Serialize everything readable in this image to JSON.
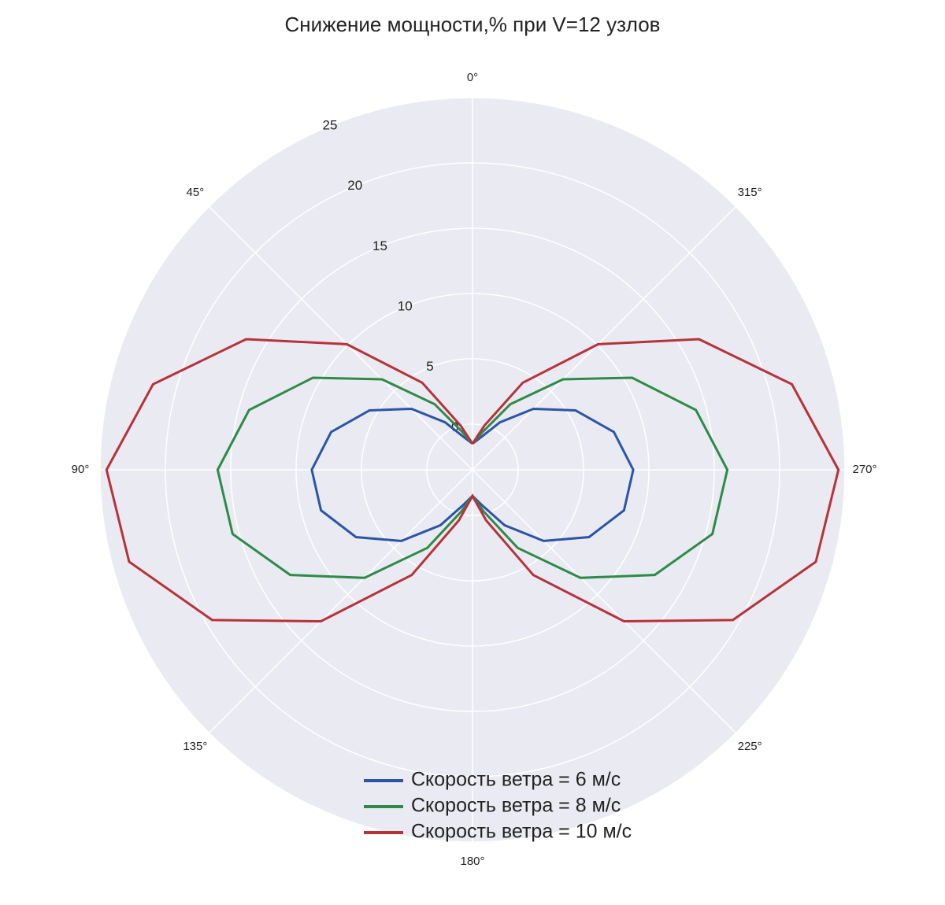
{
  "chart_data": {
    "type": "polar",
    "title": "Снижение мощности,% при V=12 узлов",
    "theta": [
      0,
      15,
      30,
      45,
      60,
      75,
      90,
      105,
      120,
      135,
      150,
      165,
      180,
      195,
      210,
      225,
      240,
      255,
      270,
      285,
      300,
      315,
      330,
      345,
      360
    ],
    "series": [
      {
        "name": "Скорость ветра = 6 м/с",
        "color": "#2b55a8",
        "values": [
          -1.5,
          -0.9,
          0.7,
          3.1,
          5.6,
          7.7,
          8.8,
          8.5,
          6.8,
          4.2,
          1.4,
          -0.7,
          -1.5,
          -0.7,
          1.4,
          4.2,
          6.8,
          8.5,
          8.8,
          7.7,
          5.6,
          3.1,
          0.7,
          -0.9,
          -1.5
        ]
      },
      {
        "name": "Скорость ветра = 8 м/с",
        "color": "#2e8b47",
        "values": [
          -1.5,
          -0.5,
          2.3,
          6.3,
          10.6,
          14.2,
          16.0,
          15.5,
          12.6,
          8.2,
          3.4,
          -0.2,
          -1.5,
          -0.2,
          3.4,
          8.2,
          12.6,
          15.5,
          16.0,
          14.2,
          10.6,
          6.3,
          2.3,
          -0.5,
          -1.5
        ]
      },
      {
        "name": "Скорость ветра = 10 м/с",
        "color": "#b8323a",
        "values": [
          -1.5,
          0.0,
          4.2,
          10.1,
          16.5,
          21.8,
          24.5,
          23.7,
          19.5,
          12.9,
          5.8,
          0.5,
          -1.5,
          0.5,
          5.8,
          12.9,
          19.5,
          23.7,
          24.5,
          21.8,
          16.5,
          10.1,
          4.2,
          0.0,
          -1.5
        ]
      }
    ],
    "rlim": [
      -3.5,
      25
    ],
    "rticks": [
      0,
      5,
      10,
      15,
      20,
      25
    ],
    "thetaticks": [
      {
        "value": 0,
        "label": "0°"
      },
      {
        "value": 45,
        "label": "45°"
      },
      {
        "value": 90,
        "label": "90°"
      },
      {
        "value": 135,
        "label": "135°"
      },
      {
        "value": 180,
        "label": "180°"
      },
      {
        "value": 225,
        "label": "225°"
      },
      {
        "value": 270,
        "label": "270°"
      },
      {
        "value": 315,
        "label": "315°"
      }
    ],
    "grid": true
  }
}
